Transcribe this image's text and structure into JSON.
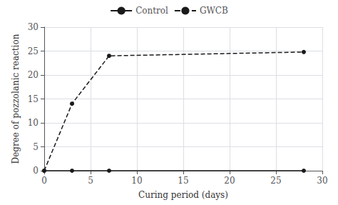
{
  "chart_data": {
    "type": "line",
    "xlabel": "Curing period (days)",
    "ylabel": "Degree of pozzolanic reaction",
    "x": [
      0,
      3,
      7,
      28
    ],
    "series": [
      {
        "name": "Control",
        "color": "#1a1a1a",
        "line_style": "solid",
        "marker": "circle",
        "values": [
          0,
          0,
          0,
          0
        ]
      },
      {
        "name": "GWCB",
        "color": "#1a1a1a",
        "line_style": "dashed",
        "marker": "circle",
        "values": [
          0,
          14,
          24,
          24.8
        ]
      }
    ],
    "xlim": [
      0,
      30
    ],
    "ylim": [
      0,
      30
    ],
    "xticks": [
      0,
      5,
      10,
      15,
      20,
      25,
      30
    ],
    "yticks": [
      0,
      5,
      10,
      15,
      20,
      25,
      30
    ],
    "grid": true,
    "legend": "top"
  }
}
